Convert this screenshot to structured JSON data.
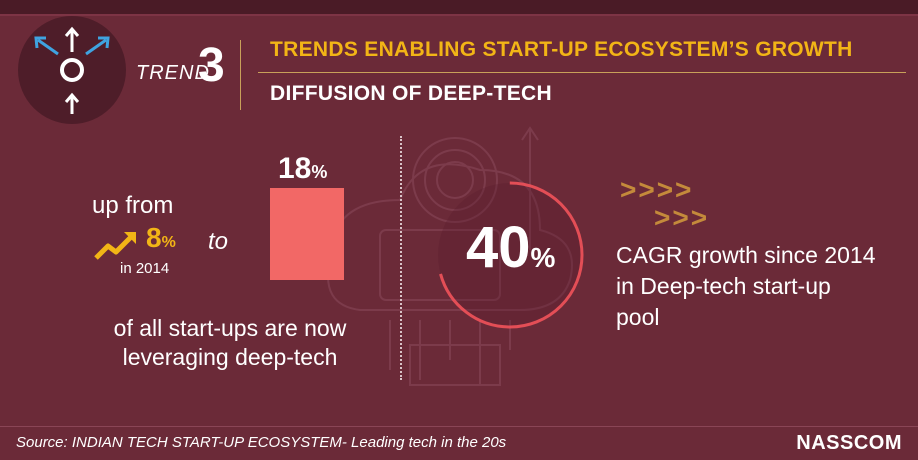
{
  "header": {
    "trend_word": "TREND",
    "trend_number": "3",
    "title": "TRENDS ENABLING START-UP ECOSYSTEM’S GROWTH",
    "subtitle": "DIFFUSION OF DEEP-TECH"
  },
  "icon": "diffusion-arrows-icon",
  "left_panel": {
    "up_from": "up from",
    "from_value": "8",
    "from_unit": "%",
    "year": "in 2014",
    "to": "to",
    "to_value": "18",
    "to_unit": "%",
    "caption": "of all start-ups are now leveraging deep-tech"
  },
  "right_panel": {
    "value": "40",
    "unit": "%",
    "chevrons_row1": ">>>>",
    "chevrons_row2": ">>>",
    "caption": "CAGR growth since 2014 in Deep-tech start-up pool"
  },
  "footer": {
    "source": "Source: INDIAN TECH START-UP ECOSYSTEM- Leading tech in the 20s",
    "brand": "NASSCOM"
  },
  "colors": {
    "background": "#6b2a38",
    "accent_yellow": "#f2b516",
    "bar": "#f26866",
    "ring": "#f0525a",
    "chevrons": "#c48a3b"
  }
}
